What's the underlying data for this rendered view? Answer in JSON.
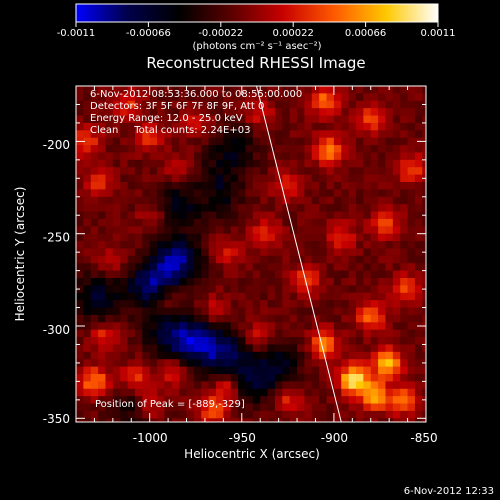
{
  "title": "Reconstructed RHESSI Image",
  "colorbar": {
    "tick_labels": [
      "-0.0011",
      "-0.00066",
      "-0.00022",
      "0.00022",
      "0.00066",
      "0.0011"
    ],
    "unit": "(photons cm⁻² s⁻¹ asec⁻²)",
    "range": [
      -0.0011,
      0.0011
    ],
    "stops": [
      "#0000ff",
      "#00004a",
      "#000000",
      "#5a0000",
      "#c80000",
      "#ff5a00",
      "#ffc800",
      "#ffffff"
    ]
  },
  "info": {
    "line1": "6-Nov-2012 08:53:36.000 to 08:55:00.000",
    "line2": "Detectors: 3F 5F 6F 7F 8F 9F, Att 0",
    "line3": "Energy Range: 12.0 - 25.0 keV",
    "line4": "Clean     Total counts: 2.24E+03"
  },
  "peak_label": "Position of Peak = [-889,-329]",
  "timestamp": "6-Nov-2012 12:33",
  "chart_data": {
    "type": "heatmap",
    "title": "Reconstructed RHESSI Image",
    "xlabel": "Heliocentric X (arcsec)",
    "ylabel": "Heliocentric Y (arcsec)",
    "xlim": [
      -1040,
      -850
    ],
    "ylim": [
      -352,
      -170
    ],
    "xticks": [
      -1000,
      -950,
      -900,
      -850
    ],
    "yticks": [
      -350,
      -300,
      -250,
      -200
    ],
    "xtick_labels": [
      "-1000",
      "-950",
      "-900",
      "-850"
    ],
    "ytick_labels": [
      "-350",
      "-300",
      "-250",
      "-200"
    ],
    "peak": [
      -889,
      -329
    ],
    "limb_line": [
      [
        -942,
        -170
      ],
      [
        -896,
        -352
      ]
    ],
    "hotspots": [
      {
        "x": -889,
        "y": -329,
        "v": 0.0011
      },
      {
        "x": -871,
        "y": -320,
        "v": 0.0009
      },
      {
        "x": -878,
        "y": -338,
        "v": 0.0008
      },
      {
        "x": -905,
        "y": -310,
        "v": 0.0007
      },
      {
        "x": -880,
        "y": -295,
        "v": 0.0006
      },
      {
        "x": -915,
        "y": -275,
        "v": 0.0005
      },
      {
        "x": -862,
        "y": -280,
        "v": 0.0005
      },
      {
        "x": -862,
        "y": -340,
        "v": 0.0006
      },
      {
        "x": -903,
        "y": -205,
        "v": 0.0007
      },
      {
        "x": -905,
        "y": -178,
        "v": 0.0006
      },
      {
        "x": -880,
        "y": -188,
        "v": 0.0005
      },
      {
        "x": -925,
        "y": -225,
        "v": 0.0004
      },
      {
        "x": -872,
        "y": -245,
        "v": 0.0005
      },
      {
        "x": -858,
        "y": -215,
        "v": 0.0005
      },
      {
        "x": -937,
        "y": -250,
        "v": 0.0004
      },
      {
        "x": -896,
        "y": -252,
        "v": 0.0004
      },
      {
        "x": -1035,
        "y": -200,
        "v": 0.0005
      },
      {
        "x": -1028,
        "y": -222,
        "v": 0.0004
      },
      {
        "x": -1000,
        "y": -198,
        "v": 0.0004
      },
      {
        "x": -1012,
        "y": -180,
        "v": 0.0004
      },
      {
        "x": -1020,
        "y": -265,
        "v": 0.0003
      },
      {
        "x": -998,
        "y": -240,
        "v": 0.0003
      },
      {
        "x": -985,
        "y": -215,
        "v": 0.0003
      },
      {
        "x": -975,
        "y": -190,
        "v": 0.0003
      },
      {
        "x": -970,
        "y": -230,
        "v": 0.0003
      },
      {
        "x": -958,
        "y": -260,
        "v": 0.0003
      },
      {
        "x": -965,
        "y": -292,
        "v": 0.0003
      },
      {
        "x": -1030,
        "y": -330,
        "v": 0.0007
      },
      {
        "x": -1008,
        "y": -328,
        "v": 0.0005
      },
      {
        "x": -1025,
        "y": -305,
        "v": 0.0004
      },
      {
        "x": -1000,
        "y": -342,
        "v": 0.0004
      },
      {
        "x": -988,
        "y": -325,
        "v": 0.0004
      },
      {
        "x": -965,
        "y": -345,
        "v": 0.0006
      },
      {
        "x": -957,
        "y": -333,
        "v": 0.0005
      },
      {
        "x": -940,
        "y": -305,
        "v": 0.0004
      },
      {
        "x": -925,
        "y": -340,
        "v": 0.0004
      },
      {
        "x": -990,
        "y": -285,
        "v": 0.0003
      },
      {
        "x": -940,
        "y": -185,
        "v": 0.0003
      }
    ],
    "coldspots": [
      {
        "x": -985,
        "y": -265,
        "v": -0.0008
      },
      {
        "x": -1000,
        "y": -278,
        "v": -0.0007
      },
      {
        "x": -975,
        "y": -308,
        "v": -0.0007
      },
      {
        "x": -960,
        "y": -315,
        "v": -0.0006
      },
      {
        "x": -990,
        "y": -305,
        "v": -0.0005
      },
      {
        "x": -945,
        "y": -330,
        "v": -0.0005
      },
      {
        "x": -1028,
        "y": -285,
        "v": -0.0005
      },
      {
        "x": -965,
        "y": -228,
        "v": -0.0005
      },
      {
        "x": -955,
        "y": -205,
        "v": -0.0004
      },
      {
        "x": -985,
        "y": -235,
        "v": -0.0004
      },
      {
        "x": -930,
        "y": -320,
        "v": -0.0004
      },
      {
        "x": -1010,
        "y": -345,
        "v": -0.0003
      }
    ]
  }
}
